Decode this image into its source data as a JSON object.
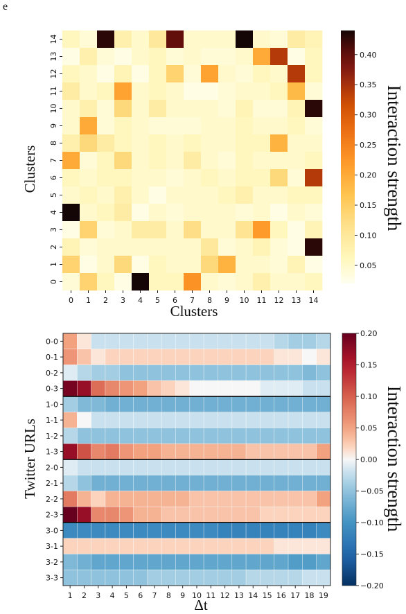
{
  "panel_label": "e",
  "chart_data": [
    {
      "type": "heatmap",
      "xlabel": "Clusters",
      "ylabel": "Clusters",
      "x_ticks": [
        "0",
        "1",
        "2",
        "3",
        "4",
        "5",
        "6",
        "7",
        "8",
        "9",
        "10",
        "11",
        "12",
        "13",
        "14"
      ],
      "y_ticks": [
        "0",
        "1",
        "2",
        "3",
        "4",
        "5",
        "6",
        "7",
        "8",
        "9",
        "10",
        "11",
        "12",
        "13",
        "14"
      ],
      "colorbar_label": "Interaction strength",
      "colorbar_ticks": [
        "0.05",
        "0.10",
        "0.15",
        "0.20",
        "0.25",
        "0.30",
        "0.35",
        "0.40"
      ],
      "colorbar_tick_values": [
        0.05,
        0.1,
        0.15,
        0.2,
        0.25,
        0.3,
        0.35,
        0.4
      ],
      "vmin": 0.02,
      "vmax": 0.44,
      "colormap": "YlOrBr-to-black",
      "values_rows_top_to_bottom_y14_to_y0": [
        [
          0.06,
          0.04,
          0.43,
          0.08,
          0.05,
          0.1,
          0.4,
          0.05,
          0.05,
          0.05,
          0.44,
          0.05,
          0.04,
          0.09,
          0.07
        ],
        [
          0.03,
          0.08,
          0.04,
          0.03,
          0.05,
          0.06,
          0.04,
          0.05,
          0.04,
          0.04,
          0.05,
          0.2,
          0.34,
          0.03,
          0.06
        ],
        [
          0.06,
          0.05,
          0.03,
          0.07,
          0.03,
          0.06,
          0.14,
          0.04,
          0.21,
          0.05,
          0.04,
          0.06,
          0.05,
          0.34,
          0.06
        ],
        [
          0.09,
          0.05,
          0.06,
          0.21,
          0.05,
          0.06,
          0.05,
          0.03,
          0.03,
          0.04,
          0.05,
          0.05,
          0.06,
          0.18,
          0.04
        ],
        [
          0.05,
          0.08,
          0.04,
          0.13,
          0.05,
          0.09,
          0.05,
          0.05,
          0.05,
          0.04,
          0.07,
          0.04,
          0.04,
          0.07,
          0.43
        ],
        [
          0.05,
          0.2,
          0.04,
          0.06,
          0.05,
          0.04,
          0.04,
          0.04,
          0.05,
          0.05,
          0.06,
          0.05,
          0.05,
          0.06,
          0.04
        ],
        [
          0.08,
          0.13,
          0.09,
          0.06,
          0.05,
          0.06,
          0.05,
          0.06,
          0.05,
          0.05,
          0.06,
          0.06,
          0.19,
          0.05,
          0.05
        ],
        [
          0.2,
          0.04,
          0.06,
          0.13,
          0.05,
          0.06,
          0.05,
          0.09,
          0.05,
          0.04,
          0.06,
          0.05,
          0.05,
          0.05,
          0.06
        ],
        [
          0.06,
          0.05,
          0.06,
          0.06,
          0.05,
          0.05,
          0.04,
          0.05,
          0.06,
          0.05,
          0.06,
          0.06,
          0.13,
          0.04,
          0.34
        ],
        [
          0.05,
          0.06,
          0.05,
          0.08,
          0.05,
          0.03,
          0.05,
          0.05,
          0.05,
          0.06,
          0.08,
          0.05,
          0.05,
          0.06,
          0.06
        ],
        [
          0.44,
          0.05,
          0.06,
          0.09,
          0.03,
          0.05,
          0.04,
          0.05,
          0.05,
          0.05,
          0.04,
          0.05,
          0.03,
          0.05,
          0.04
        ],
        [
          0.03,
          0.14,
          0.04,
          0.05,
          0.09,
          0.09,
          0.05,
          0.12,
          0.05,
          0.05,
          0.11,
          0.22,
          0.06,
          0.03,
          0.07
        ],
        [
          0.07,
          0.04,
          0.05,
          0.05,
          0.05,
          0.05,
          0.05,
          0.05,
          0.1,
          0.04,
          0.05,
          0.07,
          0.04,
          0.03,
          0.43
        ],
        [
          0.14,
          0.03,
          0.05,
          0.13,
          0.03,
          0.06,
          0.05,
          0.05,
          0.13,
          0.19,
          0.05,
          0.05,
          0.04,
          0.07,
          0.03
        ],
        [
          0.04,
          0.14,
          0.06,
          0.03,
          0.44,
          0.06,
          0.06,
          0.23,
          0.05,
          0.04,
          0.05,
          0.08,
          0.05,
          0.05,
          0.06
        ]
      ]
    },
    {
      "type": "heatmap",
      "xlabel": "Δt",
      "ylabel": "Twitter URLs",
      "x_ticks": [
        "1",
        "2",
        "3",
        "4",
        "5",
        "6",
        "7",
        "8",
        "9",
        "10",
        "11",
        "12",
        "13",
        "14",
        "15",
        "16",
        "17",
        "18",
        "19"
      ],
      "y_ticks": [
        "0-0",
        "0-1",
        "0-2",
        "0-3",
        "1-0",
        "1-1",
        "1-2",
        "1-3",
        "2-0",
        "2-1",
        "2-2",
        "2-3",
        "3-0",
        "3-1",
        "3-2",
        "3-3"
      ],
      "colorbar_label": "Interaction strength",
      "colorbar_ticks": [
        "0.20",
        "0.15",
        "0.10",
        "0.05",
        "0.00",
        "−0.05",
        "−0.10",
        "−0.15",
        "−0.20"
      ],
      "colorbar_tick_values": [
        0.2,
        0.15,
        0.1,
        0.05,
        0.0,
        -0.05,
        -0.1,
        -0.15,
        -0.2
      ],
      "vmin": -0.2,
      "vmax": 0.2,
      "colormap": "RdBu",
      "group_separators_after_rows": [
        3,
        7,
        11
      ],
      "values_rows_top_to_bottom": [
        [
          0.05,
          0.01,
          -0.02,
          -0.02,
          -0.02,
          -0.02,
          -0.02,
          -0.02,
          -0.02,
          -0.02,
          -0.02,
          -0.02,
          -0.02,
          -0.02,
          -0.02,
          -0.03,
          -0.04,
          -0.04,
          -0.03
        ],
        [
          0.06,
          0.03,
          0.01,
          0.02,
          0.02,
          0.02,
          0.02,
          0.02,
          0.02,
          0.02,
          0.02,
          0.02,
          0.02,
          0.02,
          0.02,
          0.01,
          0.01,
          0.0,
          0.01
        ],
        [
          -0.01,
          -0.03,
          -0.04,
          -0.04,
          -0.05,
          -0.05,
          -0.05,
          -0.05,
          -0.05,
          -0.05,
          -0.05,
          -0.05,
          -0.05,
          -0.05,
          -0.05,
          -0.05,
          -0.05,
          -0.06,
          -0.05
        ],
        [
          0.19,
          0.17,
          0.09,
          0.07,
          0.06,
          0.05,
          0.03,
          0.02,
          0.01,
          0.0,
          0.0,
          0.0,
          0.0,
          0.0,
          -0.01,
          -0.01,
          -0.01,
          -0.02,
          -0.02
        ],
        [
          -0.04,
          -0.06,
          -0.06,
          -0.07,
          -0.07,
          -0.07,
          -0.07,
          -0.07,
          -0.07,
          -0.07,
          -0.07,
          -0.07,
          -0.07,
          -0.07,
          -0.07,
          -0.07,
          -0.07,
          -0.07,
          -0.07
        ],
        [
          0.04,
          0.0,
          -0.02,
          -0.02,
          -0.02,
          -0.02,
          -0.02,
          -0.02,
          -0.02,
          -0.02,
          -0.02,
          -0.02,
          -0.02,
          -0.02,
          -0.02,
          -0.02,
          -0.02,
          -0.02,
          -0.02
        ],
        [
          -0.03,
          -0.05,
          -0.05,
          -0.05,
          -0.05,
          -0.05,
          -0.05,
          -0.05,
          -0.05,
          -0.05,
          -0.05,
          -0.05,
          -0.05,
          -0.05,
          -0.05,
          -0.05,
          -0.05,
          -0.05,
          -0.05
        ],
        [
          0.17,
          0.11,
          0.07,
          0.08,
          0.06,
          0.05,
          0.05,
          0.04,
          0.04,
          0.04,
          0.04,
          0.04,
          0.04,
          0.03,
          0.03,
          0.03,
          0.03,
          0.03,
          0.05
        ],
        [
          -0.01,
          -0.02,
          -0.02,
          -0.02,
          -0.02,
          -0.02,
          -0.02,
          -0.02,
          -0.02,
          -0.02,
          -0.02,
          -0.02,
          -0.02,
          -0.02,
          -0.02,
          -0.02,
          -0.02,
          -0.02,
          -0.02
        ],
        [
          -0.03,
          -0.05,
          -0.07,
          -0.07,
          -0.07,
          -0.07,
          -0.07,
          -0.07,
          -0.07,
          -0.07,
          -0.07,
          -0.07,
          -0.07,
          -0.07,
          -0.07,
          -0.07,
          -0.07,
          -0.07,
          -0.07
        ],
        [
          0.08,
          0.04,
          0.02,
          0.04,
          0.04,
          0.04,
          0.04,
          0.04,
          0.04,
          0.03,
          0.03,
          0.03,
          0.03,
          0.03,
          0.03,
          0.03,
          0.03,
          0.03,
          0.05
        ],
        [
          0.2,
          0.17,
          0.07,
          0.07,
          0.06,
          0.04,
          0.04,
          0.03,
          0.03,
          0.03,
          0.03,
          0.03,
          0.03,
          0.03,
          0.02,
          0.02,
          0.02,
          0.02,
          0.02
        ],
        [
          -0.11,
          -0.11,
          -0.11,
          -0.11,
          -0.11,
          -0.11,
          -0.11,
          -0.11,
          -0.11,
          -0.11,
          -0.11,
          -0.12,
          -0.12,
          -0.12,
          -0.12,
          -0.12,
          -0.12,
          -0.12,
          -0.11
        ],
        [
          0.02,
          0.02,
          0.02,
          0.02,
          0.02,
          0.02,
          0.02,
          0.02,
          0.02,
          0.02,
          0.02,
          0.02,
          0.02,
          0.02,
          0.02,
          0.01,
          0.01,
          0.01,
          0.01
        ],
        [
          -0.06,
          -0.07,
          -0.08,
          -0.08,
          -0.08,
          -0.08,
          -0.08,
          -0.08,
          -0.08,
          -0.08,
          -0.08,
          -0.08,
          -0.08,
          -0.08,
          -0.08,
          -0.08,
          -0.09,
          -0.09,
          -0.08
        ],
        [
          -0.05,
          -0.05,
          -0.05,
          -0.05,
          -0.05,
          -0.05,
          -0.04,
          -0.04,
          -0.04,
          -0.04,
          -0.04,
          -0.04,
          -0.04,
          -0.03,
          -0.03,
          -0.03,
          -0.03,
          -0.02,
          -0.02
        ]
      ]
    }
  ]
}
